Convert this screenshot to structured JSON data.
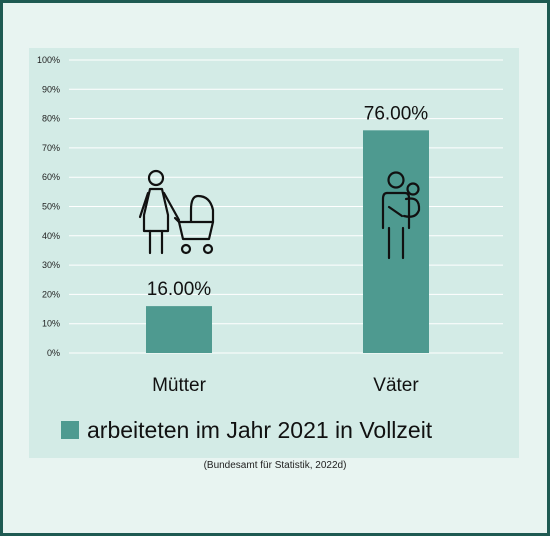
{
  "chart_data": {
    "type": "bar",
    "categories": [
      "Mütter",
      "Väter"
    ],
    "series": [
      {
        "name": "arbeiteten im Jahr 2021 in Vollzeit",
        "values": [
          16.0,
          76.0
        ]
      }
    ],
    "data_labels": [
      "16.00%",
      "76.00%"
    ],
    "yticks": [
      "0%",
      "10%",
      "20%",
      "30%",
      "40%",
      "50%",
      "60%",
      "70%",
      "80%",
      "90%",
      "100%"
    ],
    "ylim": [
      0,
      100
    ],
    "grid": true,
    "legend_position": "bottom",
    "bar_color": "#4e9a90",
    "icons": [
      "mother-with-stroller-icon",
      "father-holding-child-icon"
    ]
  },
  "source": "(Bundesamt für Statistik, 2022d)"
}
